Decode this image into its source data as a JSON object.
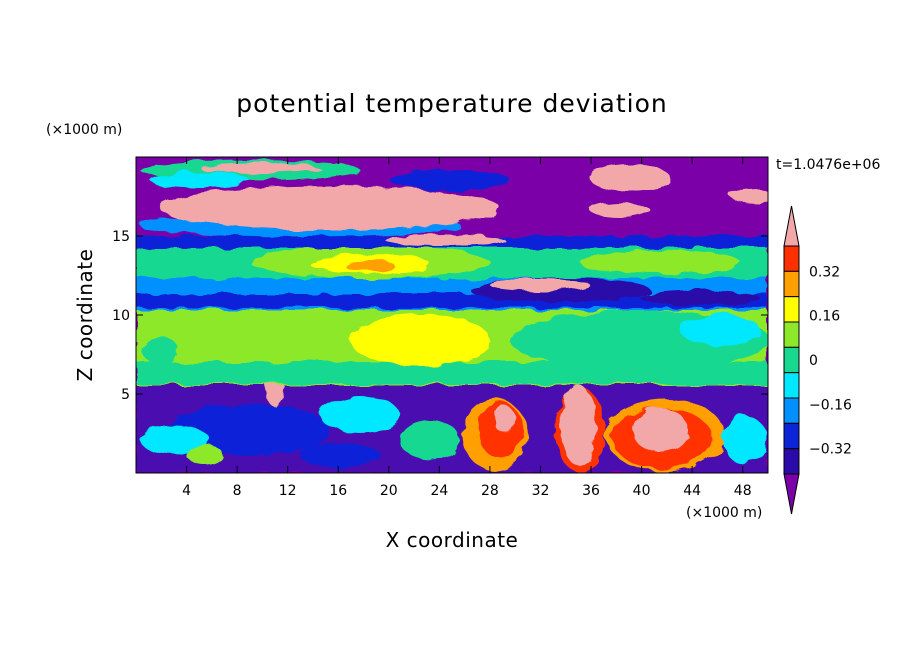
{
  "chart_data": {
    "type": "heatmap",
    "title": "potential temperature deviation",
    "xlabel": "X coordinate",
    "ylabel": "Z coordinate",
    "x_unit": "(×1000 m)",
    "y_unit": "(×1000 m)",
    "time_label": "t=1.0476e+06",
    "xlim": [
      0,
      50
    ],
    "ylim": [
      0,
      20
    ],
    "x_ticks": [
      4,
      8,
      12,
      16,
      20,
      24,
      28,
      32,
      36,
      40,
      44,
      48
    ],
    "y_ticks": [
      5,
      10,
      15
    ],
    "colorbar": {
      "levels": [
        -0.4,
        -0.32,
        -0.24,
        -0.16,
        -0.08,
        0,
        0.08,
        0.16,
        0.24,
        0.32,
        0.4
      ],
      "labeled_ticks": [
        0.32,
        0.16,
        0,
        -0.16,
        -0.32
      ],
      "colors_low_to_high": [
        "#7b00a8",
        "#2a0aa8",
        "#0b24d8",
        "#0090ff",
        "#00e8ff",
        "#18d890",
        "#8ee82a",
        "#ffff00",
        "#ffa000",
        "#ff3000",
        "#f2a8a8"
      ],
      "extend": "both"
    },
    "bands": [
      {
        "z": [
          0,
          5.6
        ],
        "level": "mixed, -0.4 to 0.4+"
      },
      {
        "z": [
          5.6,
          10.3
        ],
        "level": "0 to 0.16"
      },
      {
        "z": [
          10.3,
          12.0
        ],
        "level": "-0.32 to -0.08"
      },
      {
        "z": [
          12.0,
          14.2
        ],
        "level": "0 to 0.24"
      },
      {
        "z": [
          14.2,
          20
        ],
        "level": "-0.4 to 0.4+"
      }
    ]
  }
}
